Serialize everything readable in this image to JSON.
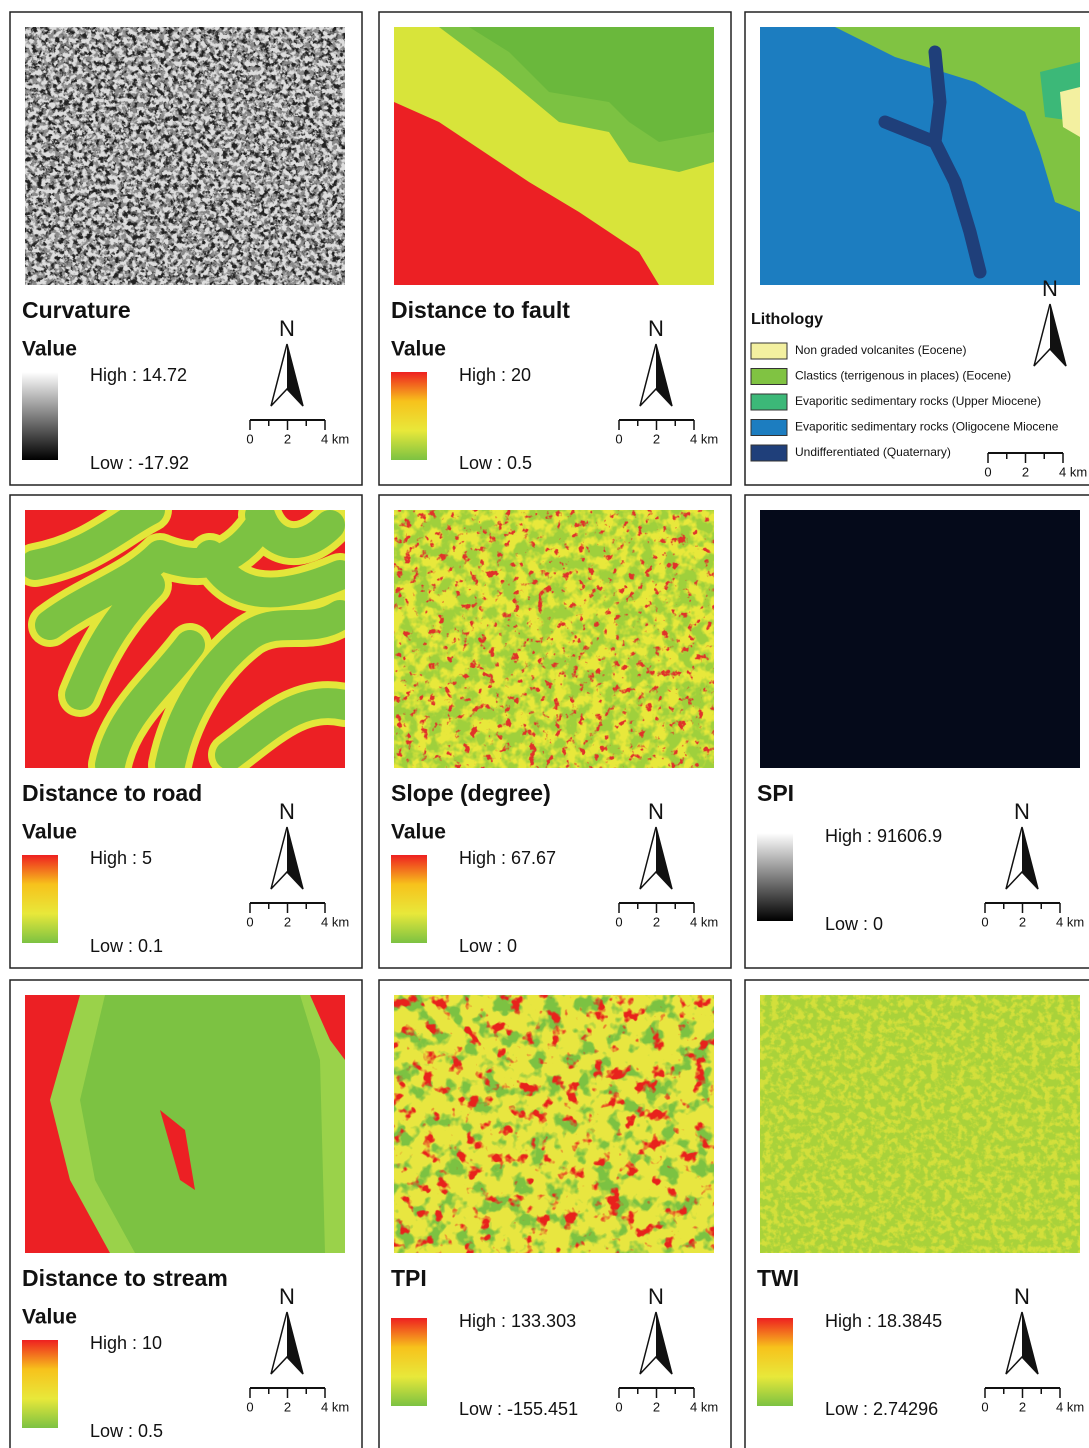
{
  "panels": [
    {
      "title": "Curvature",
      "value_label": "Value",
      "high": "High : 14.72",
      "low": "Low : -17.92",
      "ramp": [
        "#ffffff",
        "#000000"
      ],
      "north": "N",
      "scale": [
        "0",
        "2",
        "4 km"
      ]
    },
    {
      "title": "Distance to fault",
      "value_label": "Value",
      "high": "High : 20",
      "low": "Low : 0.5",
      "ramp": [
        "#ee2020",
        "#f7c21c",
        "#e8e83a",
        "#7cc242"
      ],
      "north": "N",
      "scale": [
        "0",
        "2",
        "4 km"
      ]
    },
    {
      "title": "Lithology",
      "north": "N",
      "scale": [
        "0",
        "2",
        "4 km"
      ],
      "legend": [
        {
          "label": "Non graded volcanites (Eocene)",
          "color": "#f3f0a0"
        },
        {
          "label": "Clastics (terrigenous in places) (Eocene)",
          "color": "#80c342"
        },
        {
          "label": "Evaporitic sedimentary rocks (Upper Miocene)",
          "color": "#3cb878"
        },
        {
          "label": "Evaporitic sedimentary rocks (Oligocene Miocene",
          "color": "#1c7dc0"
        },
        {
          "label": "Undifferentiated (Quaternary)",
          "color": "#1f3f7a"
        }
      ]
    },
    {
      "title": "Distance to road",
      "value_label": "Value",
      "high": "High : 5",
      "low": "Low : 0.1",
      "ramp": [
        "#ee2020",
        "#f7c21c",
        "#e8e83a",
        "#7cc242"
      ],
      "north": "N",
      "scale": [
        "0",
        "2",
        "4 km"
      ]
    },
    {
      "title": "Slope (degree)",
      "value_label": "Value",
      "high": "High : 67.67",
      "low": "Low : 0",
      "ramp": [
        "#ee2020",
        "#f7c21c",
        "#e8e83a",
        "#7cc242"
      ],
      "north": "N",
      "scale": [
        "0",
        "2",
        "4 km"
      ]
    },
    {
      "title": "SPI",
      "high": "High : 91606.9",
      "low": "Low : 0",
      "ramp": [
        "#ffffff",
        "#000000"
      ],
      "north": "N",
      "scale": [
        "0",
        "2",
        "4 km"
      ]
    },
    {
      "title": "Distance to stream",
      "value_label": "Value",
      "high": "High : 10",
      "low": "Low : 0.5",
      "ramp": [
        "#ee2020",
        "#f7c21c",
        "#e8e83a",
        "#7cc242"
      ],
      "north": "N",
      "scale": [
        "0",
        "2",
        "4 km"
      ]
    },
    {
      "title": "TPI",
      "high": "High : 133.303",
      "low": "Low : -155.451",
      "ramp": [
        "#ee2020",
        "#f7c21c",
        "#e8e83a",
        "#7cc242"
      ],
      "north": "N",
      "scale": [
        "0",
        "2",
        "4 km"
      ]
    },
    {
      "title": "TWI",
      "high": "High : 18.3845",
      "low": "Low : 2.74296",
      "ramp": [
        "#ee2020",
        "#f7c21c",
        "#e8e83a",
        "#7cc242"
      ],
      "north": "N",
      "scale": [
        "0",
        "2",
        "4 km"
      ]
    }
  ]
}
